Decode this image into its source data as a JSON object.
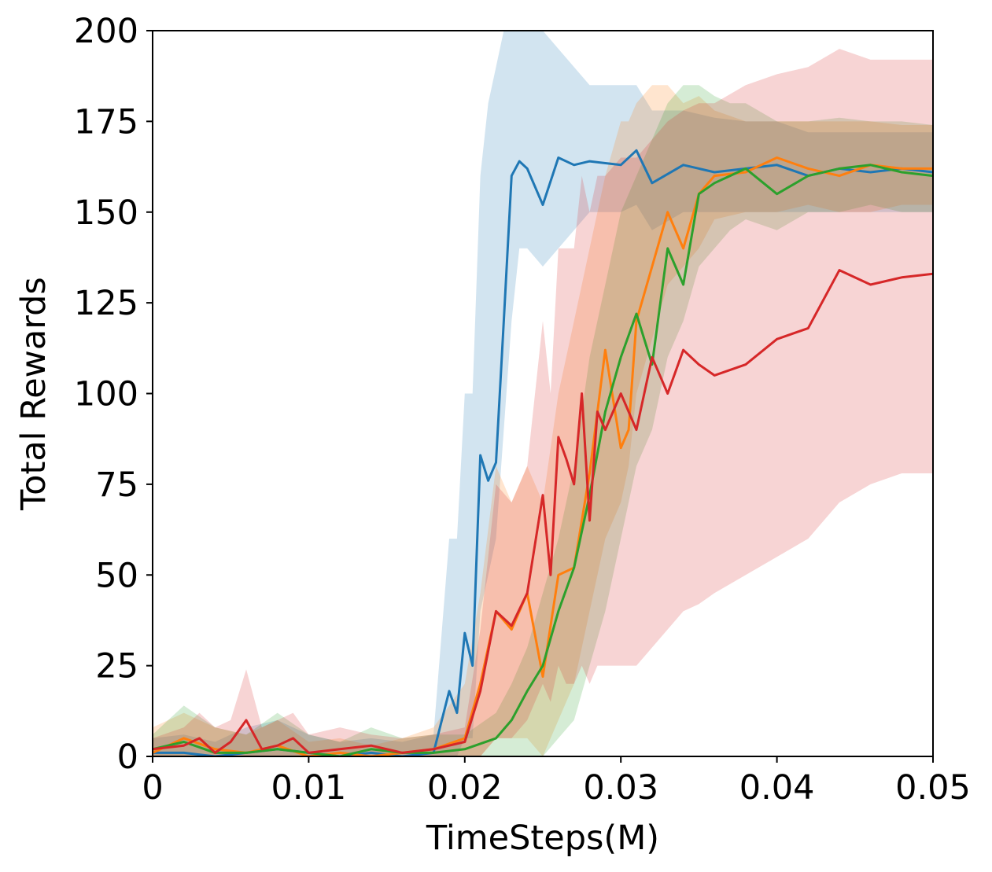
{
  "chart_data": {
    "type": "line",
    "title": "",
    "xlabel": "TimeSteps(M)",
    "ylabel": "Total Rewards",
    "xlim": [
      0,
      0.05
    ],
    "ylim": [
      0,
      200
    ],
    "xticks": [
      0,
      0.01,
      0.02,
      0.03,
      0.04,
      0.05
    ],
    "xtick_labels": [
      "0",
      "0.01",
      "0.02",
      "0.03",
      "0.04",
      "0.05"
    ],
    "yticks": [
      0,
      25,
      50,
      75,
      100,
      125,
      150,
      175,
      200
    ],
    "ytick_labels": [
      "0",
      "25",
      "50",
      "75",
      "100",
      "125",
      "150",
      "175",
      "200"
    ],
    "grid": false,
    "legend": "none",
    "series": [
      {
        "color": "#1f77b4",
        "shaded_band": true,
        "x": [
          0,
          0.002,
          0.004,
          0.006,
          0.008,
          0.01,
          0.012,
          0.014,
          0.016,
          0.018,
          0.019,
          0.0195,
          0.02,
          0.0205,
          0.021,
          0.0215,
          0.022,
          0.0225,
          0.023,
          0.0235,
          0.024,
          0.025,
          0.026,
          0.027,
          0.028,
          0.03,
          0.031,
          0.032,
          0.034,
          0.036,
          0.038,
          0.04,
          0.042,
          0.044,
          0.046,
          0.048,
          0.05
        ],
        "y": [
          1,
          1,
          0,
          1,
          2,
          1,
          0,
          1,
          0,
          1,
          18,
          12,
          34,
          25,
          83,
          76,
          81,
          120,
          160,
          164,
          162,
          152,
          165,
          163,
          164,
          163,
          167,
          158,
          163,
          161,
          162,
          163,
          160,
          162,
          161,
          162,
          161
        ],
        "lower": [
          0,
          0,
          0,
          0,
          0,
          0,
          0,
          0,
          0,
          0,
          0,
          0,
          5,
          5,
          40,
          50,
          60,
          90,
          120,
          140,
          140,
          135,
          140,
          145,
          150,
          150,
          152,
          145,
          150,
          150,
          150,
          150,
          150,
          150,
          150,
          150,
          150
        ],
        "upper": [
          5,
          6,
          4,
          8,
          10,
          6,
          4,
          5,
          4,
          6,
          60,
          60,
          100,
          100,
          160,
          180,
          190,
          200,
          200,
          200,
          200,
          200,
          195,
          190,
          185,
          185,
          185,
          178,
          178,
          176,
          175,
          175,
          172,
          172,
          172,
          172,
          172
        ]
      },
      {
        "color": "#ff7f0e",
        "shaded_band": true,
        "x": [
          0,
          0.002,
          0.004,
          0.006,
          0.008,
          0.01,
          0.012,
          0.014,
          0.016,
          0.018,
          0.02,
          0.021,
          0.022,
          0.023,
          0.024,
          0.025,
          0.026,
          0.027,
          0.028,
          0.029,
          0.03,
          0.0305,
          0.031,
          0.032,
          0.033,
          0.034,
          0.035,
          0.036,
          0.038,
          0.04,
          0.042,
          0.044,
          0.046,
          0.048,
          0.05
        ],
        "y": [
          1,
          5,
          2,
          1,
          3,
          0,
          1,
          0,
          1,
          2,
          5,
          20,
          40,
          35,
          45,
          22,
          50,
          52,
          78,
          112,
          85,
          90,
          120,
          135,
          150,
          140,
          155,
          160,
          161,
          165,
          162,
          160,
          163,
          162,
          162
        ],
        "lower": [
          0,
          0,
          0,
          0,
          0,
          0,
          0,
          0,
          0,
          0,
          0,
          0,
          5,
          5,
          5,
          0,
          10,
          20,
          40,
          60,
          70,
          80,
          100,
          115,
          130,
          135,
          140,
          148,
          150,
          150,
          152,
          150,
          150,
          152,
          152
        ],
        "upper": [
          8,
          12,
          8,
          6,
          10,
          4,
          5,
          3,
          5,
          8,
          20,
          45,
          80,
          70,
          80,
          70,
          100,
          120,
          140,
          160,
          175,
          175,
          180,
          185,
          185,
          180,
          182,
          178,
          175,
          175,
          175,
          175,
          175,
          174,
          174
        ]
      },
      {
        "color": "#2ca02c",
        "shaded_band": true,
        "x": [
          0,
          0.002,
          0.004,
          0.006,
          0.008,
          0.01,
          0.012,
          0.014,
          0.016,
          0.018,
          0.02,
          0.022,
          0.023,
          0.024,
          0.025,
          0.026,
          0.027,
          0.028,
          0.029,
          0.03,
          0.031,
          0.032,
          0.033,
          0.034,
          0.035,
          0.036,
          0.037,
          0.038,
          0.04,
          0.042,
          0.044,
          0.046,
          0.048,
          0.05
        ],
        "y": [
          2,
          4,
          1,
          1,
          2,
          1,
          0,
          2,
          1,
          1,
          2,
          5,
          10,
          18,
          25,
          40,
          52,
          72,
          95,
          110,
          122,
          108,
          140,
          130,
          155,
          158,
          160,
          162,
          155,
          160,
          162,
          163,
          161,
          160
        ],
        "lower": [
          0,
          0,
          0,
          0,
          0,
          0,
          0,
          0,
          0,
          0,
          0,
          0,
          0,
          0,
          0,
          5,
          10,
          25,
          40,
          60,
          80,
          90,
          110,
          120,
          135,
          140,
          145,
          148,
          145,
          150,
          150,
          152,
          150,
          150
        ],
        "upper": [
          6,
          14,
          8,
          6,
          12,
          6,
          4,
          8,
          5,
          6,
          6,
          12,
          20,
          30,
          45,
          60,
          80,
          110,
          130,
          150,
          160,
          170,
          180,
          185,
          185,
          182,
          180,
          180,
          175,
          175,
          176,
          175,
          175,
          174
        ]
      },
      {
        "color": "#d62728",
        "shaded_band": true,
        "x": [
          0,
          0.002,
          0.003,
          0.004,
          0.005,
          0.006,
          0.007,
          0.008,
          0.009,
          0.01,
          0.012,
          0.014,
          0.016,
          0.018,
          0.02,
          0.021,
          0.022,
          0.023,
          0.024,
          0.025,
          0.0255,
          0.026,
          0.0265,
          0.027,
          0.0275,
          0.028,
          0.0285,
          0.029,
          0.03,
          0.031,
          0.032,
          0.033,
          0.034,
          0.035,
          0.036,
          0.038,
          0.04,
          0.042,
          0.044,
          0.046,
          0.048,
          0.05
        ],
        "y": [
          2,
          3,
          5,
          1,
          4,
          10,
          2,
          3,
          5,
          1,
          2,
          3,
          1,
          2,
          4,
          18,
          40,
          36,
          45,
          72,
          50,
          88,
          82,
          75,
          100,
          65,
          95,
          90,
          100,
          90,
          110,
          100,
          112,
          108,
          105,
          108,
          115,
          118,
          134,
          130,
          132,
          133
        ],
        "lower": [
          0,
          0,
          0,
          0,
          0,
          0,
          0,
          0,
          0,
          0,
          0,
          0,
          0,
          0,
          0,
          0,
          5,
          5,
          10,
          20,
          15,
          25,
          20,
          20,
          25,
          20,
          25,
          25,
          25,
          25,
          30,
          35,
          40,
          42,
          45,
          50,
          55,
          60,
          70,
          75,
          78,
          78
        ],
        "upper": [
          5,
          8,
          12,
          8,
          10,
          24,
          8,
          10,
          12,
          6,
          8,
          6,
          5,
          6,
          8,
          35,
          75,
          70,
          80,
          120,
          100,
          140,
          140,
          140,
          160,
          150,
          160,
          160,
          165,
          165,
          170,
          175,
          178,
          180,
          180,
          185,
          188,
          190,
          195,
          192,
          192,
          192
        ]
      }
    ]
  }
}
